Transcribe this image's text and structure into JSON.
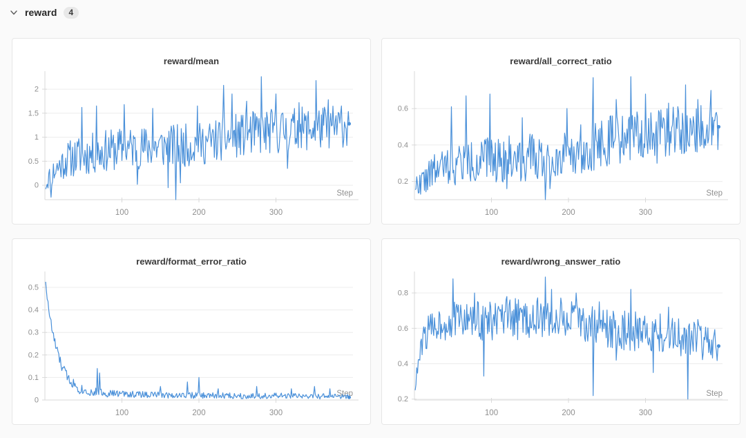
{
  "page": {
    "background_color": "#fafafa",
    "panel_background": "#ffffff",
    "panel_border_color": "#e6e6e6"
  },
  "header": {
    "title": "reward",
    "count": "4"
  },
  "axis_style": {
    "axis_color": "#d9d9d9",
    "grid_color": "#ececec",
    "tick_label_color": "#8f8f8f",
    "series_color": "#4a90d9"
  },
  "chart_data": [
    {
      "type": "line",
      "title": "reward/mean",
      "xlabel": "Step",
      "x_ticks": [
        100,
        200,
        300
      ],
      "x_range": [
        0,
        400
      ],
      "y_ticks": [
        0,
        0.5,
        1,
        1.5,
        2
      ],
      "y_range": [
        -0.3,
        2.26
      ],
      "n_points": 395,
      "seed": 11,
      "line_color": "#4a90d9",
      "grid": true,
      "legend": "none",
      "end_marker": true,
      "base": [
        [
          1,
          0.0
        ],
        [
          5,
          0.15
        ],
        [
          15,
          0.35
        ],
        [
          30,
          0.55
        ],
        [
          50,
          0.62
        ],
        [
          80,
          0.72
        ],
        [
          110,
          0.78
        ],
        [
          150,
          0.8
        ],
        [
          200,
          0.85
        ],
        [
          240,
          1.0
        ],
        [
          280,
          1.1
        ],
        [
          320,
          1.15
        ],
        [
          360,
          1.2
        ],
        [
          395,
          1.25
        ]
      ],
      "noise_amp": [
        [
          1,
          0.15
        ],
        [
          10,
          0.3
        ],
        [
          40,
          0.42
        ],
        [
          100,
          0.45
        ],
        [
          200,
          0.45
        ],
        [
          300,
          0.48
        ],
        [
          395,
          0.45
        ]
      ],
      "spikes": [
        [
          8,
          -0.25
        ],
        [
          48,
          1.62
        ],
        [
          67,
          1.65
        ],
        [
          103,
          1.68
        ],
        [
          120,
          0.02
        ],
        [
          140,
          1.6
        ],
        [
          160,
          -0.05
        ],
        [
          170,
          -0.3
        ],
        [
          176,
          0.05
        ],
        [
          198,
          1.65
        ],
        [
          232,
          2.08
        ],
        [
          243,
          1.9
        ],
        [
          262,
          1.75
        ],
        [
          281,
          2.28
        ],
        [
          300,
          1.9
        ],
        [
          315,
          0.35
        ],
        [
          330,
          1.72
        ],
        [
          352,
          2.18
        ],
        [
          368,
          1.78
        ],
        [
          385,
          1.65
        ],
        [
          395,
          1.28
        ]
      ]
    },
    {
      "type": "line",
      "title": "reward/all_correct_ratio",
      "xlabel": "Step",
      "x_ticks": [
        100,
        200,
        300
      ],
      "x_range": [
        0,
        400
      ],
      "y_ticks": [
        0.2,
        0.4,
        0.6
      ],
      "y_range": [
        0.1,
        0.775
      ],
      "n_points": 395,
      "seed": 22,
      "line_color": "#4a90d9",
      "grid": true,
      "legend": "none",
      "end_marker": true,
      "base": [
        [
          1,
          0.18
        ],
        [
          10,
          0.2
        ],
        [
          30,
          0.27
        ],
        [
          60,
          0.3
        ],
        [
          100,
          0.32
        ],
        [
          150,
          0.33
        ],
        [
          200,
          0.36
        ],
        [
          250,
          0.42
        ],
        [
          300,
          0.46
        ],
        [
          350,
          0.48
        ],
        [
          395,
          0.5
        ]
      ],
      "noise_amp": [
        [
          1,
          0.05
        ],
        [
          20,
          0.09
        ],
        [
          60,
          0.12
        ],
        [
          150,
          0.13
        ],
        [
          250,
          0.14
        ],
        [
          395,
          0.13
        ]
      ],
      "spikes": [
        [
          8,
          0.13
        ],
        [
          48,
          0.61
        ],
        [
          67,
          0.67
        ],
        [
          98,
          0.68
        ],
        [
          120,
          0.16
        ],
        [
          140,
          0.55
        ],
        [
          170,
          0.1
        ],
        [
          176,
          0.16
        ],
        [
          198,
          0.6
        ],
        [
          232,
          0.77
        ],
        [
          262,
          0.65
        ],
        [
          281,
          0.78
        ],
        [
          300,
          0.68
        ],
        [
          315,
          0.3
        ],
        [
          330,
          0.63
        ],
        [
          352,
          0.73
        ],
        [
          368,
          0.65
        ],
        [
          385,
          0.7
        ],
        [
          395,
          0.5
        ]
      ]
    },
    {
      "type": "line",
      "title": "reward/format_error_ratio",
      "xlabel": "Step",
      "x_ticks": [
        100,
        200,
        300
      ],
      "x_range": [
        0,
        400
      ],
      "y_ticks": [
        0,
        0.1,
        0.2,
        0.3,
        0.4,
        0.5
      ],
      "y_range": [
        0,
        0.546
      ],
      "n_points": 395,
      "seed": 33,
      "line_color": "#4a90d9",
      "grid": true,
      "legend": "none",
      "end_marker": true,
      "base": [
        [
          1,
          0.53
        ],
        [
          3,
          0.45
        ],
        [
          6,
          0.38
        ],
        [
          10,
          0.3
        ],
        [
          14,
          0.24
        ],
        [
          18,
          0.19
        ],
        [
          22,
          0.15
        ],
        [
          28,
          0.11
        ],
        [
          35,
          0.08
        ],
        [
          45,
          0.05
        ],
        [
          60,
          0.035
        ],
        [
          80,
          0.03
        ],
        [
          120,
          0.025
        ],
        [
          200,
          0.02
        ],
        [
          300,
          0.018
        ],
        [
          395,
          0.015
        ]
      ],
      "noise_amp": [
        [
          1,
          0.01
        ],
        [
          10,
          0.025
        ],
        [
          30,
          0.025
        ],
        [
          60,
          0.02
        ],
        [
          100,
          0.015
        ],
        [
          395,
          0.012
        ]
      ],
      "spikes": [
        [
          68,
          0.14
        ],
        [
          71,
          0.12
        ],
        [
          150,
          0.06
        ],
        [
          185,
          0.08
        ],
        [
          200,
          0.1
        ],
        [
          225,
          0.05
        ],
        [
          275,
          0.06
        ],
        [
          320,
          0.05
        ],
        [
          350,
          0.06
        ],
        [
          370,
          0.05
        ],
        [
          395,
          0.012
        ]
      ]
    },
    {
      "type": "line",
      "title": "reward/wrong_answer_ratio",
      "xlabel": "Step",
      "x_ticks": [
        100,
        200,
        300
      ],
      "x_range": [
        0,
        400
      ],
      "y_ticks": [
        0.2,
        0.4,
        0.6,
        0.8
      ],
      "y_range": [
        0.195,
        0.89
      ],
      "n_points": 395,
      "seed": 44,
      "line_color": "#4a90d9",
      "grid": true,
      "legend": "none",
      "end_marker": true,
      "base": [
        [
          1,
          0.27
        ],
        [
          5,
          0.4
        ],
        [
          12,
          0.55
        ],
        [
          25,
          0.62
        ],
        [
          60,
          0.65
        ],
        [
          100,
          0.64
        ],
        [
          150,
          0.66
        ],
        [
          200,
          0.65
        ],
        [
          250,
          0.6
        ],
        [
          300,
          0.58
        ],
        [
          350,
          0.55
        ],
        [
          395,
          0.5
        ]
      ],
      "noise_amp": [
        [
          1,
          0.04
        ],
        [
          15,
          0.09
        ],
        [
          60,
          0.11
        ],
        [
          150,
          0.12
        ],
        [
          250,
          0.12
        ],
        [
          350,
          0.11
        ],
        [
          395,
          0.1
        ]
      ],
      "spikes": [
        [
          50,
          0.88
        ],
        [
          78,
          0.8
        ],
        [
          90,
          0.33
        ],
        [
          120,
          0.78
        ],
        [
          170,
          0.89
        ],
        [
          178,
          0.82
        ],
        [
          210,
          0.8
        ],
        [
          232,
          0.22
        ],
        [
          240,
          0.75
        ],
        [
          262,
          0.42
        ],
        [
          281,
          0.82
        ],
        [
          310,
          0.35
        ],
        [
          330,
          0.72
        ],
        [
          355,
          0.2
        ],
        [
          368,
          0.65
        ],
        [
          385,
          0.45
        ],
        [
          395,
          0.5
        ]
      ]
    }
  ]
}
